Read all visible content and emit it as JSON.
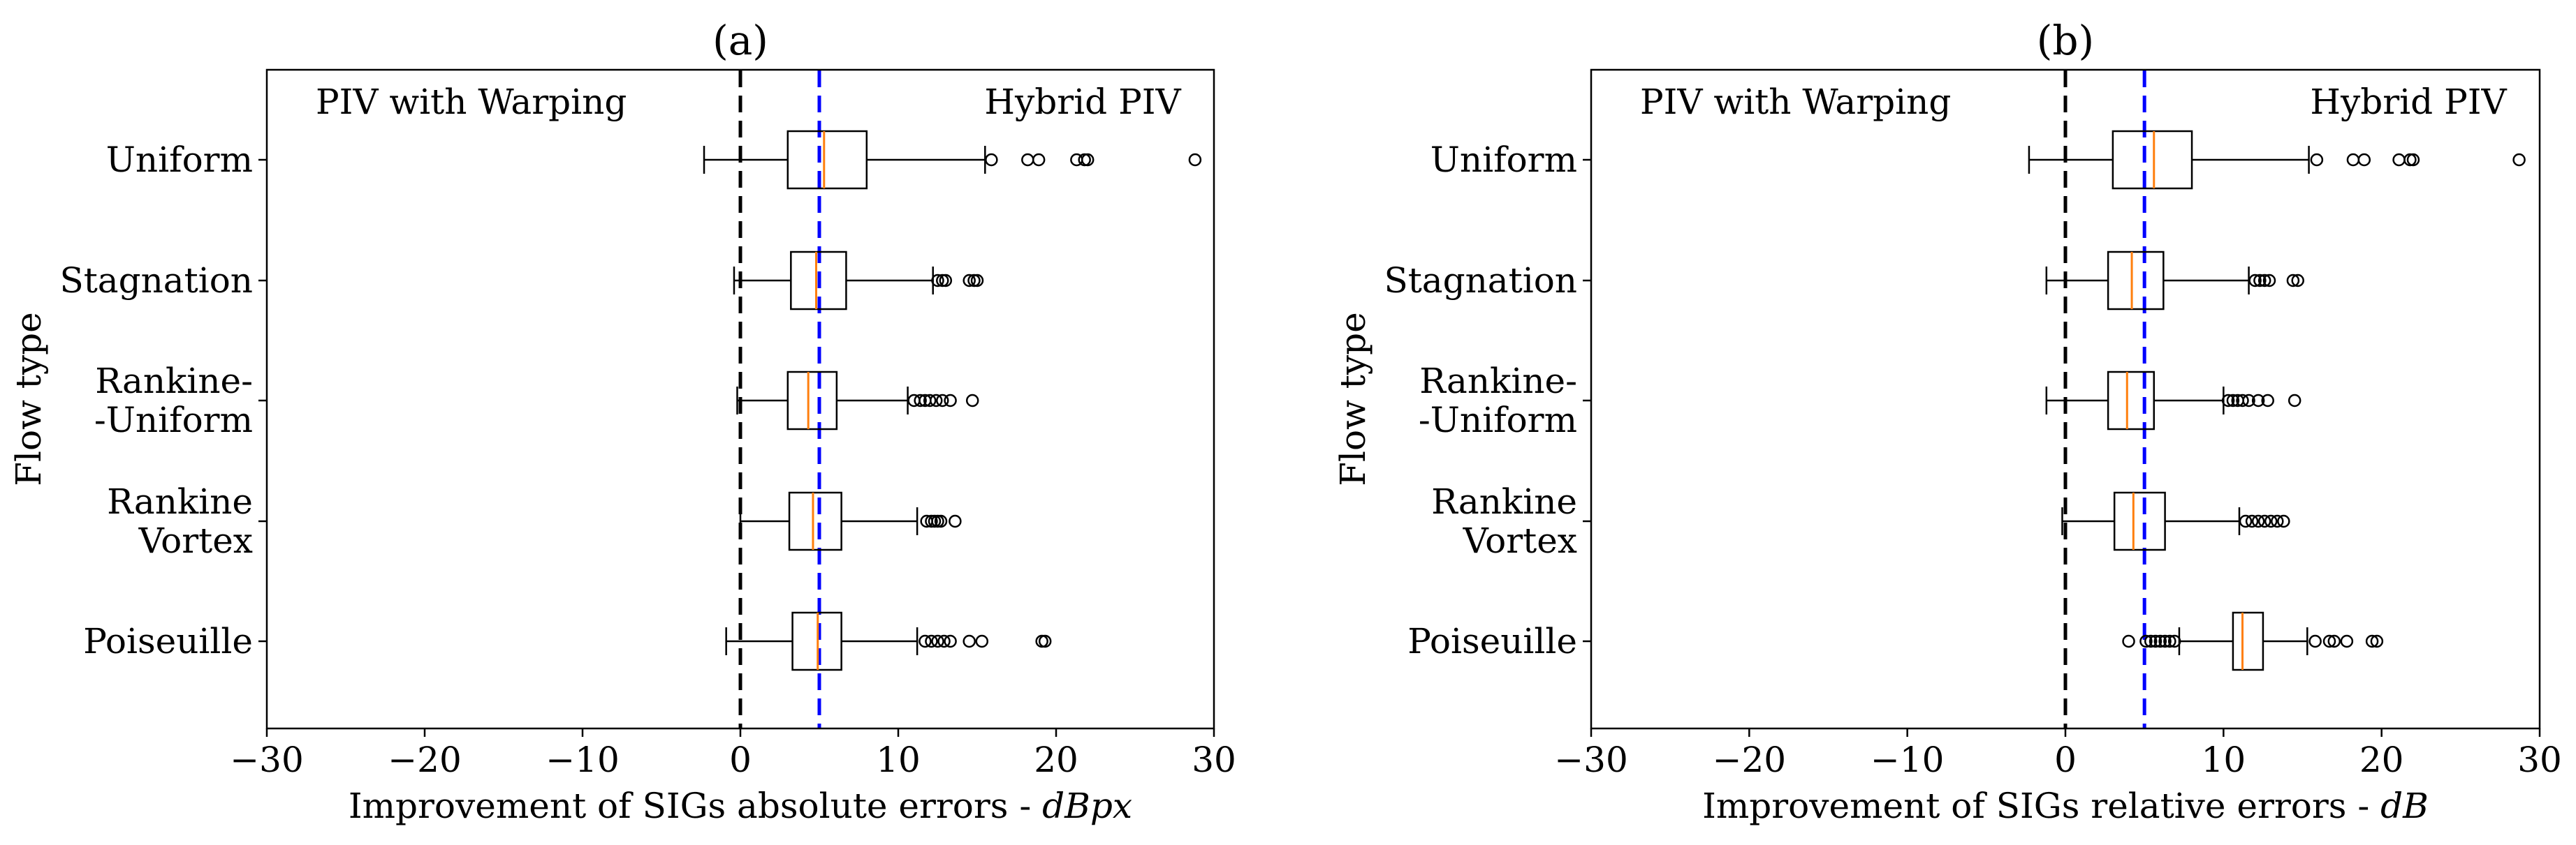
{
  "chart_data": [
    {
      "type": "boxplot",
      "panel_label": "(a)",
      "orientation": "horizontal",
      "xlabel": "Improvement of SIGs absolute errors - ",
      "xlabel_unit": "dBpx",
      "ylabel": "Flow type",
      "xlim": [
        -30,
        30
      ],
      "xticks": [
        -30,
        -20,
        -10,
        0,
        10,
        20,
        30
      ],
      "xtick_labels": [
        "−30",
        "−20",
        "−10",
        "0",
        "10",
        "20",
        "30"
      ],
      "region_labels": {
        "left": "PIV with Warping",
        "right": "Hybrid PIV"
      },
      "reference_lines": [
        {
          "x": 0,
          "color": "#000000",
          "style": "dashed"
        },
        {
          "x": 5,
          "color": "#0000ff",
          "style": "dashed"
        }
      ],
      "categories": [
        {
          "label_lines": [
            "Uniform"
          ],
          "whisker_low": -2.3,
          "q1": 3.0,
          "median": 5.3,
          "q3": 8.0,
          "whisker_high": 15.5,
          "outliers": [
            15.9,
            18.2,
            18.9,
            21.3,
            21.8,
            22.0,
            28.8
          ]
        },
        {
          "label_lines": [
            "Stagnation"
          ],
          "whisker_low": -0.4,
          "q1": 3.2,
          "median": 4.8,
          "q3": 6.7,
          "whisker_high": 12.2,
          "outliers": [
            12.5,
            12.8,
            13.0,
            14.5,
            14.8,
            15.0
          ]
        },
        {
          "label_lines": [
            "Rankine-",
            "-Uniform"
          ],
          "whisker_low": -0.2,
          "q1": 3.0,
          "median": 4.3,
          "q3": 6.1,
          "whisker_high": 10.6,
          "outliers": [
            11.0,
            11.4,
            11.7,
            12.0,
            12.4,
            12.8,
            13.3,
            14.7
          ]
        },
        {
          "label_lines": [
            "Rankine",
            "Vortex"
          ],
          "whisker_low": 0.0,
          "q1": 3.1,
          "median": 4.6,
          "q3": 6.4,
          "whisker_high": 11.2,
          "outliers": [
            11.8,
            12.1,
            12.3,
            12.5,
            12.7,
            13.6
          ]
        },
        {
          "label_lines": [
            "Poiseuille"
          ],
          "whisker_low": -0.9,
          "q1": 3.3,
          "median": 4.9,
          "q3": 6.4,
          "whisker_high": 11.2,
          "outliers": [
            11.7,
            12.1,
            12.5,
            12.9,
            13.3,
            14.5,
            15.3,
            19.1,
            19.3
          ]
        }
      ]
    },
    {
      "type": "boxplot",
      "panel_label": "(b)",
      "orientation": "horizontal",
      "xlabel": "Improvement of SIGs relative errors - ",
      "xlabel_unit": "dB",
      "ylabel": "Flow type",
      "xlim": [
        -30,
        30
      ],
      "xticks": [
        -30,
        -20,
        -10,
        0,
        10,
        20,
        30
      ],
      "xtick_labels": [
        "−30",
        "−20",
        "−10",
        "0",
        "10",
        "20",
        "30"
      ],
      "region_labels": {
        "left": "PIV with Warping",
        "right": "Hybrid PIV"
      },
      "reference_lines": [
        {
          "x": 0,
          "color": "#000000",
          "style": "dashed"
        },
        {
          "x": 5,
          "color": "#0000ff",
          "style": "dashed"
        }
      ],
      "categories": [
        {
          "label_lines": [
            "Uniform"
          ],
          "whisker_low": -2.3,
          "q1": 3.0,
          "median": 5.6,
          "q3": 8.0,
          "whisker_high": 15.4,
          "outliers": [
            15.9,
            18.2,
            18.9,
            21.1,
            21.8,
            22.0,
            28.7
          ]
        },
        {
          "label_lines": [
            "Stagnation"
          ],
          "whisker_low": -1.2,
          "q1": 2.7,
          "median": 4.2,
          "q3": 6.2,
          "whisker_high": 11.6,
          "outliers": [
            12.0,
            12.3,
            12.6,
            12.9,
            14.4,
            14.7
          ]
        },
        {
          "label_lines": [
            "Rankine-",
            "-Uniform"
          ],
          "whisker_low": -1.2,
          "q1": 2.7,
          "median": 3.9,
          "q3": 5.6,
          "whisker_high": 10.0,
          "outliers": [
            10.3,
            10.6,
            10.9,
            11.2,
            11.6,
            12.2,
            12.8,
            14.5
          ]
        },
        {
          "label_lines": [
            "Rankine",
            "Vortex"
          ],
          "whisker_low": -0.2,
          "q1": 3.1,
          "median": 4.3,
          "q3": 6.3,
          "whisker_high": 11.0,
          "outliers": [
            11.4,
            11.8,
            12.2,
            12.6,
            13.0,
            13.4,
            13.8
          ]
        },
        {
          "label_lines": [
            "Poiseuille"
          ],
          "whisker_low": 7.2,
          "q1": 10.6,
          "median": 11.2,
          "q3": 12.5,
          "whisker_high": 15.3,
          "outliers": [
            4.0,
            5.1,
            5.4,
            5.7,
            6.0,
            6.3,
            6.6,
            6.9,
            15.8,
            16.7,
            17.0,
            17.8,
            19.4,
            19.7
          ]
        }
      ]
    }
  ]
}
